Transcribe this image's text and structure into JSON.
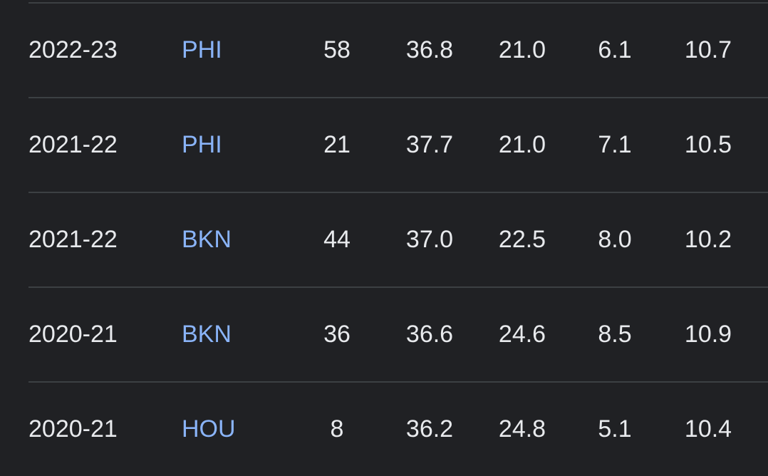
{
  "colors": {
    "background": "#202124",
    "text": "#e8eaed",
    "link": "#8ab4f8",
    "divider": "#3c4043"
  },
  "rows": [
    {
      "season": "2022-23",
      "team": "PHI",
      "stats": [
        "58",
        "36.8",
        "21.0",
        "6.1",
        "10.7"
      ]
    },
    {
      "season": "2021-22",
      "team": "PHI",
      "stats": [
        "21",
        "37.7",
        "21.0",
        "7.1",
        "10.5"
      ]
    },
    {
      "season": "2021-22",
      "team": "BKN",
      "stats": [
        "44",
        "37.0",
        "22.5",
        "8.0",
        "10.2"
      ]
    },
    {
      "season": "2020-21",
      "team": "BKN",
      "stats": [
        "36",
        "36.6",
        "24.6",
        "8.5",
        "10.9"
      ]
    },
    {
      "season": "2020-21",
      "team": "HOU",
      "stats": [
        "8",
        "36.2",
        "24.8",
        "5.1",
        "10.4"
      ]
    }
  ]
}
